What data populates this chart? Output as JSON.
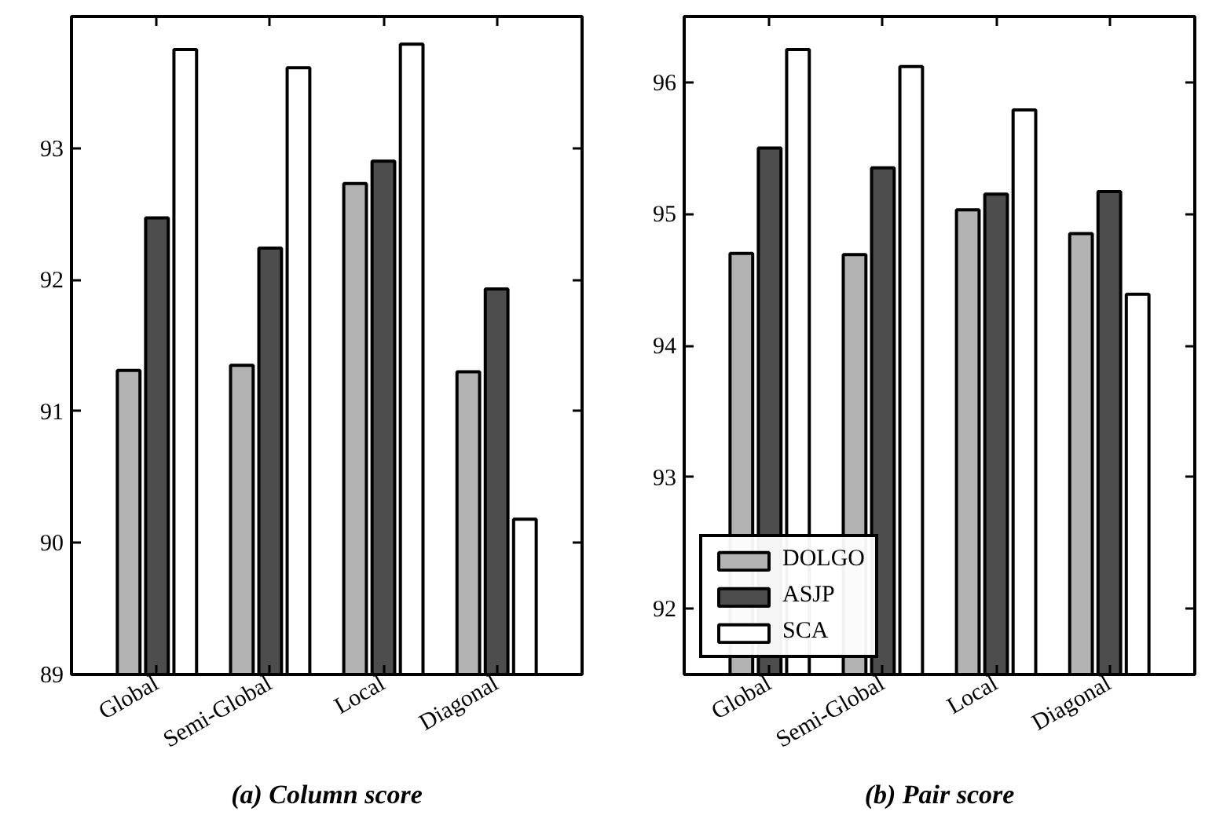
{
  "chart_data": [
    {
      "type": "bar",
      "title": "(a) Column score",
      "categories": [
        "Global",
        "Semi-Global",
        "Local",
        "Diagonal"
      ],
      "series": [
        {
          "color": "#b3b3b3",
          "values": [
            91.31,
            91.35,
            92.73,
            91.3
          ]
        },
        {
          "color": "#4d4d4d",
          "values": [
            92.47,
            92.24,
            92.9,
            91.93
          ]
        },
        {
          "color": "#ffffff",
          "values": [
            93.75,
            93.61,
            93.79,
            90.18
          ]
        }
      ],
      "ylim": [
        89,
        94
      ],
      "yticks": [
        89,
        90,
        91,
        92,
        93
      ],
      "grid": false,
      "legend": false
    },
    {
      "type": "bar",
      "title": "(b) Pair score",
      "categories": [
        "Global",
        "Semi-Global",
        "Local",
        "Diagonal"
      ],
      "series": [
        {
          "name": "DOLGO",
          "color": "#b3b3b3",
          "values": [
            94.7,
            94.69,
            95.03,
            94.85
          ]
        },
        {
          "name": "ASJP",
          "color": "#4d4d4d",
          "values": [
            95.5,
            95.35,
            95.15,
            95.17
          ]
        },
        {
          "name": "SCA",
          "color": "#ffffff",
          "values": [
            96.25,
            96.12,
            95.79,
            94.39
          ]
        }
      ],
      "ylim": [
        91.5,
        96.5
      ],
      "yticks": [
        92,
        93,
        94,
        95,
        96
      ],
      "grid": false,
      "legend": "bottom left"
    }
  ]
}
